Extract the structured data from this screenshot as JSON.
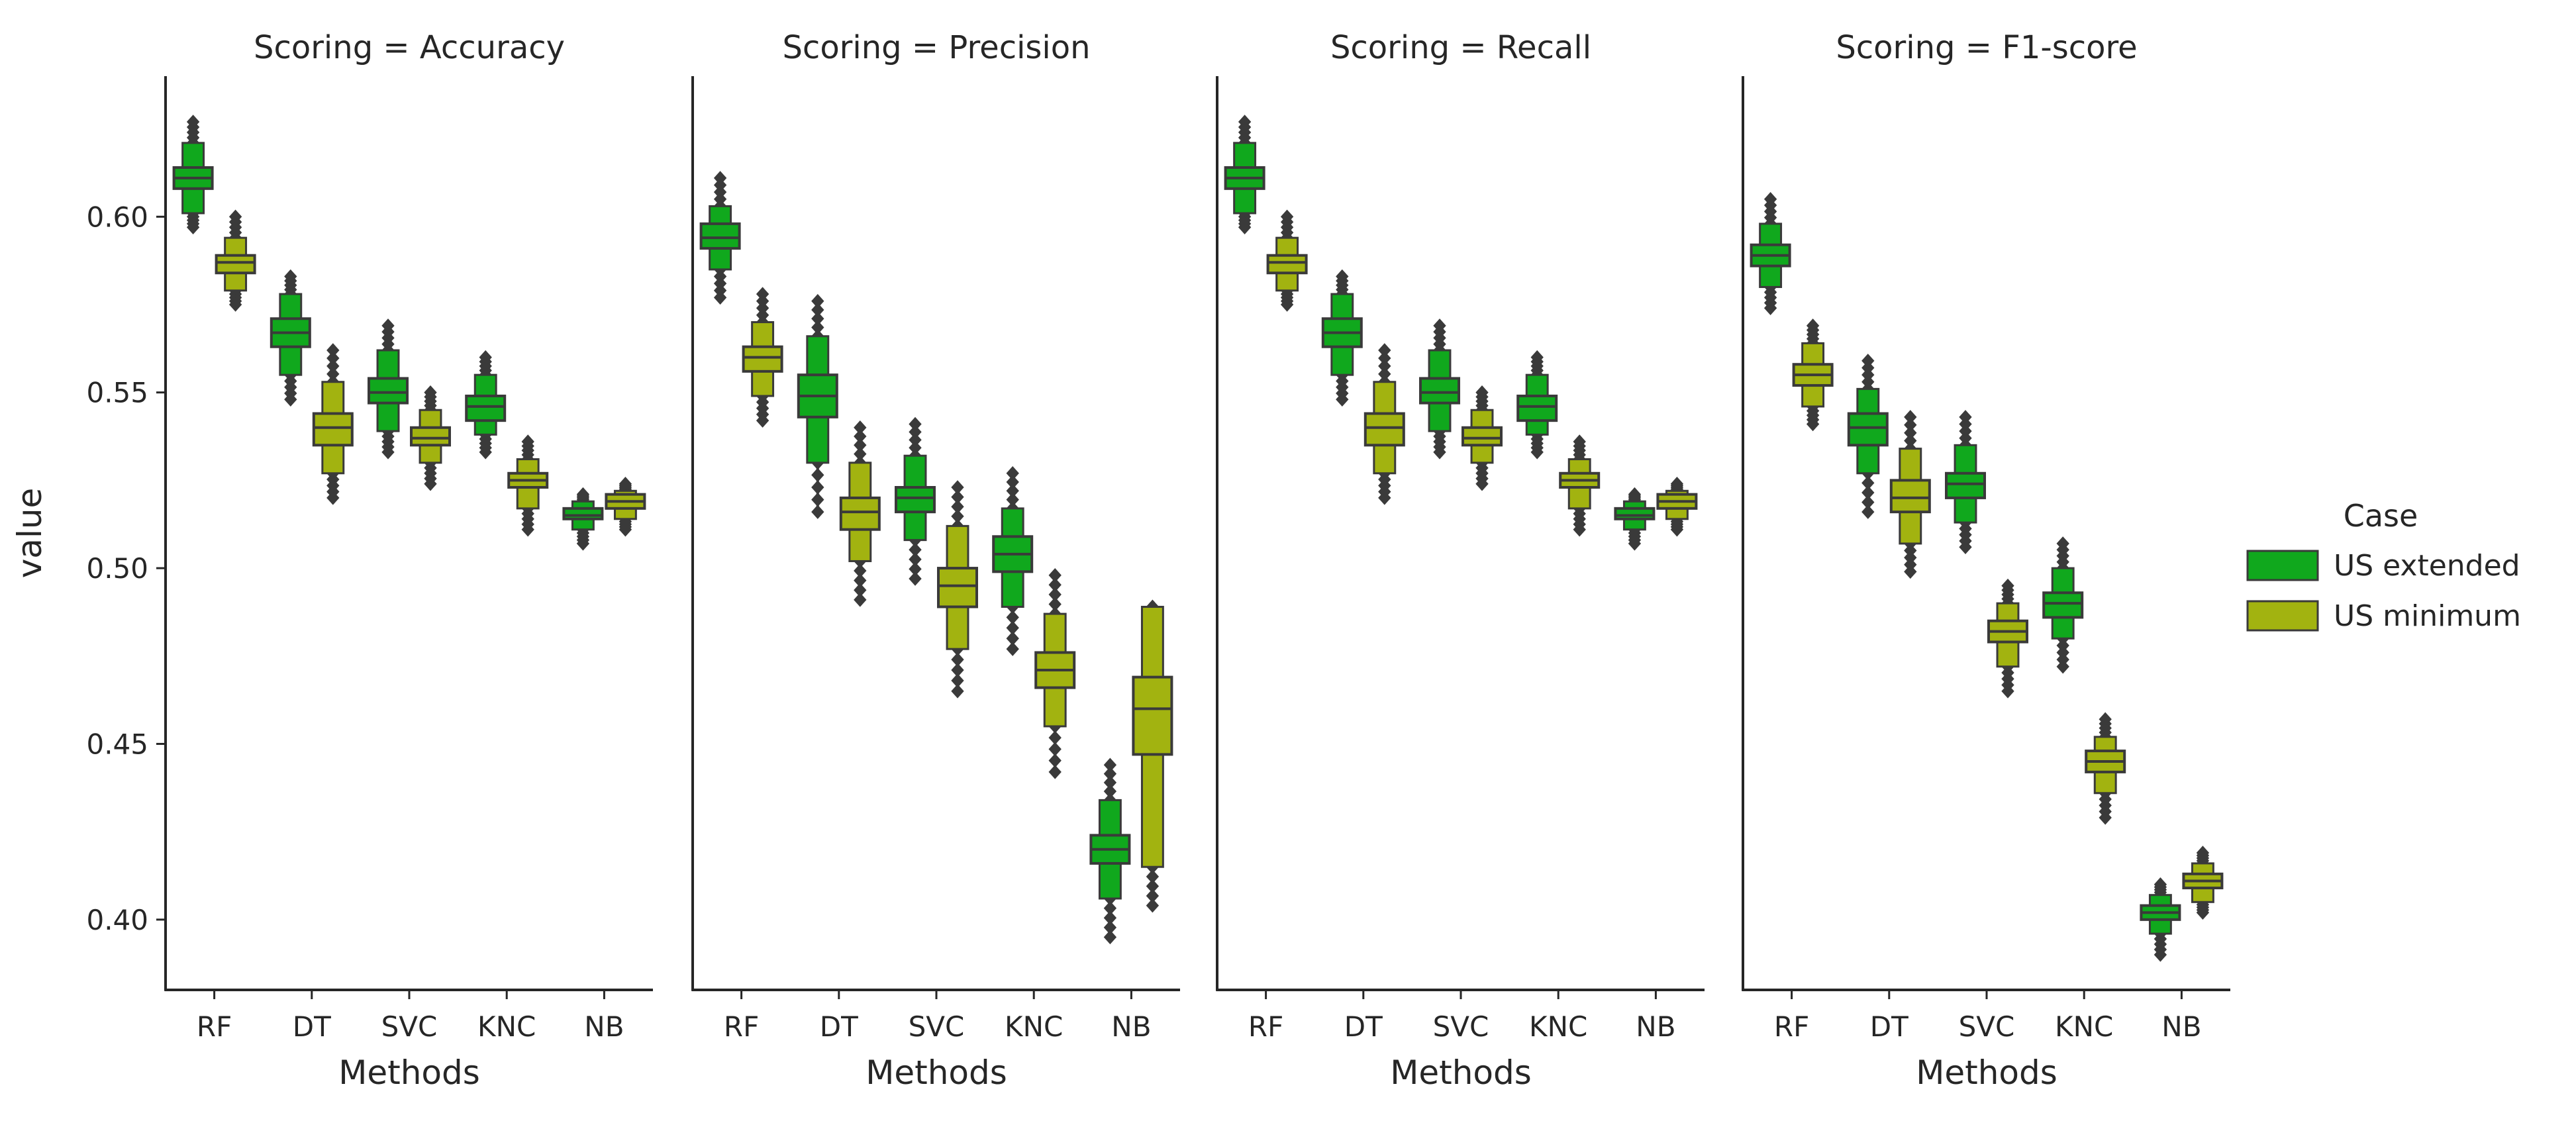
{
  "chart_data": {
    "type": "boxenplot",
    "ylabel": "value",
    "ylim": [
      0.38,
      0.64
    ],
    "yticks": [
      "0.40",
      "0.45",
      "0.50",
      "0.55",
      "0.60"
    ],
    "grid": false,
    "legend_position": "right",
    "legend": {
      "title": "Case",
      "entries": [
        {
          "name": "US extended",
          "color": "#10a81d"
        },
        {
          "name": "US minimum",
          "color": "#a2b310"
        }
      ]
    },
    "facets": [
      {
        "title": "Scoring = Accuracy",
        "xlabel": "Methods",
        "categories": [
          "RF",
          "DT",
          "SVC",
          "KNC",
          "NB"
        ],
        "series": [
          {
            "name": "US extended",
            "values": [
              {
                "median": 0.611,
                "q1": 0.608,
                "q3": 0.614,
                "whislo": 0.601,
                "whishi": 0.621,
                "min": 0.597,
                "max": 0.627
              },
              {
                "median": 0.567,
                "q1": 0.563,
                "q3": 0.571,
                "whislo": 0.555,
                "whishi": 0.578,
                "min": 0.548,
                "max": 0.583
              },
              {
                "median": 0.55,
                "q1": 0.547,
                "q3": 0.554,
                "whislo": 0.539,
                "whishi": 0.562,
                "min": 0.533,
                "max": 0.569
              },
              {
                "median": 0.546,
                "q1": 0.542,
                "q3": 0.549,
                "whislo": 0.538,
                "whishi": 0.555,
                "min": 0.533,
                "max": 0.56
              },
              {
                "median": 0.515,
                "q1": 0.514,
                "q3": 0.517,
                "whislo": 0.511,
                "whishi": 0.519,
                "min": 0.507,
                "max": 0.521
              }
            ]
          },
          {
            "name": "US minimum",
            "values": [
              {
                "median": 0.587,
                "q1": 0.584,
                "q3": 0.589,
                "whislo": 0.579,
                "whishi": 0.594,
                "min": 0.575,
                "max": 0.6
              },
              {
                "median": 0.54,
                "q1": 0.535,
                "q3": 0.544,
                "whislo": 0.527,
                "whishi": 0.553,
                "min": 0.52,
                "max": 0.562
              },
              {
                "median": 0.537,
                "q1": 0.535,
                "q3": 0.54,
                "whislo": 0.53,
                "whishi": 0.545,
                "min": 0.524,
                "max": 0.55
              },
              {
                "median": 0.525,
                "q1": 0.523,
                "q3": 0.527,
                "whislo": 0.517,
                "whishi": 0.531,
                "min": 0.511,
                "max": 0.536
              },
              {
                "median": 0.519,
                "q1": 0.517,
                "q3": 0.521,
                "whislo": 0.514,
                "whishi": 0.522,
                "min": 0.511,
                "max": 0.524
              }
            ]
          }
        ]
      },
      {
        "title": "Scoring = Precision",
        "xlabel": "Methods",
        "categories": [
          "RF",
          "DT",
          "SVC",
          "KNC",
          "NB"
        ],
        "series": [
          {
            "name": "US extended",
            "values": [
              {
                "median": 0.594,
                "q1": 0.591,
                "q3": 0.598,
                "whislo": 0.585,
                "whishi": 0.603,
                "min": 0.577,
                "max": 0.611
              },
              {
                "median": 0.549,
                "q1": 0.543,
                "q3": 0.555,
                "whislo": 0.53,
                "whishi": 0.566,
                "min": 0.516,
                "max": 0.576
              },
              {
                "median": 0.52,
                "q1": 0.516,
                "q3": 0.523,
                "whislo": 0.508,
                "whishi": 0.532,
                "min": 0.497,
                "max": 0.541
              },
              {
                "median": 0.504,
                "q1": 0.499,
                "q3": 0.509,
                "whislo": 0.489,
                "whishi": 0.517,
                "min": 0.477,
                "max": 0.527
              },
              {
                "median": 0.42,
                "q1": 0.416,
                "q3": 0.424,
                "whislo": 0.406,
                "whishi": 0.434,
                "min": 0.395,
                "max": 0.444
              }
            ]
          },
          {
            "name": "US minimum",
            "values": [
              {
                "median": 0.56,
                "q1": 0.556,
                "q3": 0.563,
                "whislo": 0.549,
                "whishi": 0.57,
                "min": 0.542,
                "max": 0.578
              },
              {
                "median": 0.516,
                "q1": 0.511,
                "q3": 0.52,
                "whislo": 0.502,
                "whishi": 0.53,
                "min": 0.491,
                "max": 0.54
              },
              {
                "median": 0.495,
                "q1": 0.489,
                "q3": 0.5,
                "whislo": 0.477,
                "whishi": 0.512,
                "min": 0.465,
                "max": 0.523
              },
              {
                "median": 0.471,
                "q1": 0.466,
                "q3": 0.476,
                "whislo": 0.455,
                "whishi": 0.487,
                "min": 0.442,
                "max": 0.498
              },
              {
                "median": 0.46,
                "q1": 0.447,
                "q3": 0.469,
                "whislo": 0.415,
                "whishi": 0.489,
                "min": 0.404,
                "max": 0.489
              }
            ]
          }
        ]
      },
      {
        "title": "Scoring = Recall",
        "xlabel": "Methods",
        "categories": [
          "RF",
          "DT",
          "SVC",
          "KNC",
          "NB"
        ],
        "series": [
          {
            "name": "US extended",
            "values": [
              {
                "median": 0.611,
                "q1": 0.608,
                "q3": 0.614,
                "whislo": 0.601,
                "whishi": 0.621,
                "min": 0.597,
                "max": 0.627
              },
              {
                "median": 0.567,
                "q1": 0.563,
                "q3": 0.571,
                "whislo": 0.555,
                "whishi": 0.578,
                "min": 0.548,
                "max": 0.583
              },
              {
                "median": 0.55,
                "q1": 0.547,
                "q3": 0.554,
                "whislo": 0.539,
                "whishi": 0.562,
                "min": 0.533,
                "max": 0.569
              },
              {
                "median": 0.546,
                "q1": 0.542,
                "q3": 0.549,
                "whislo": 0.538,
                "whishi": 0.555,
                "min": 0.533,
                "max": 0.56
              },
              {
                "median": 0.515,
                "q1": 0.514,
                "q3": 0.517,
                "whislo": 0.511,
                "whishi": 0.519,
                "min": 0.507,
                "max": 0.521
              }
            ]
          },
          {
            "name": "US minimum",
            "values": [
              {
                "median": 0.587,
                "q1": 0.584,
                "q3": 0.589,
                "whislo": 0.579,
                "whishi": 0.594,
                "min": 0.575,
                "max": 0.6
              },
              {
                "median": 0.54,
                "q1": 0.535,
                "q3": 0.544,
                "whislo": 0.527,
                "whishi": 0.553,
                "min": 0.52,
                "max": 0.562
              },
              {
                "median": 0.537,
                "q1": 0.535,
                "q3": 0.54,
                "whislo": 0.53,
                "whishi": 0.545,
                "min": 0.524,
                "max": 0.55
              },
              {
                "median": 0.525,
                "q1": 0.523,
                "q3": 0.527,
                "whislo": 0.517,
                "whishi": 0.531,
                "min": 0.511,
                "max": 0.536
              },
              {
                "median": 0.519,
                "q1": 0.517,
                "q3": 0.521,
                "whislo": 0.514,
                "whishi": 0.522,
                "min": 0.511,
                "max": 0.524
              }
            ]
          }
        ]
      },
      {
        "title": "Scoring = F1-score",
        "xlabel": "Methods",
        "categories": [
          "RF",
          "DT",
          "SVC",
          "KNC",
          "NB"
        ],
        "series": [
          {
            "name": "US extended",
            "values": [
              {
                "median": 0.589,
                "q1": 0.586,
                "q3": 0.592,
                "whislo": 0.58,
                "whishi": 0.598,
                "min": 0.574,
                "max": 0.605
              },
              {
                "median": 0.54,
                "q1": 0.535,
                "q3": 0.544,
                "whislo": 0.527,
                "whishi": 0.551,
                "min": 0.516,
                "max": 0.559
              },
              {
                "median": 0.524,
                "q1": 0.52,
                "q3": 0.527,
                "whislo": 0.513,
                "whishi": 0.535,
                "min": 0.506,
                "max": 0.543
              },
              {
                "median": 0.49,
                "q1": 0.486,
                "q3": 0.493,
                "whislo": 0.48,
                "whishi": 0.5,
                "min": 0.472,
                "max": 0.507
              },
              {
                "median": 0.402,
                "q1": 0.4,
                "q3": 0.404,
                "whislo": 0.396,
                "whishi": 0.407,
                "min": 0.39,
                "max": 0.41
              }
            ]
          },
          {
            "name": "US minimum",
            "values": [
              {
                "median": 0.555,
                "q1": 0.552,
                "q3": 0.558,
                "whislo": 0.546,
                "whishi": 0.564,
                "min": 0.541,
                "max": 0.569
              },
              {
                "median": 0.52,
                "q1": 0.516,
                "q3": 0.525,
                "whislo": 0.507,
                "whishi": 0.534,
                "min": 0.499,
                "max": 0.543
              },
              {
                "median": 0.482,
                "q1": 0.479,
                "q3": 0.485,
                "whislo": 0.472,
                "whishi": 0.49,
                "min": 0.465,
                "max": 0.495
              },
              {
                "median": 0.445,
                "q1": 0.442,
                "q3": 0.448,
                "whislo": 0.436,
                "whishi": 0.452,
                "min": 0.429,
                "max": 0.457
              },
              {
                "median": 0.411,
                "q1": 0.409,
                "q3": 0.413,
                "whislo": 0.405,
                "whishi": 0.416,
                "min": 0.402,
                "max": 0.419
              }
            ]
          }
        ]
      }
    ]
  }
}
